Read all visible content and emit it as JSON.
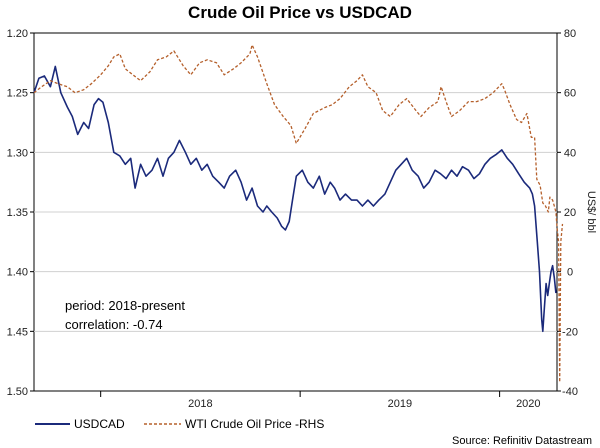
{
  "chart_data": {
    "type": "line",
    "title": "Crude Oil Price vs USDCAD",
    "ylabel": "",
    "ylabel_right": "US$/ bbl",
    "x_ticks": [
      "2018",
      "2019",
      "2020"
    ],
    "x_range": [
      "2017-09-01",
      "2020-04-15"
    ],
    "y_left": {
      "range": [
        1.5,
        1.2
      ],
      "inverted": true,
      "ticks": [
        "1.20",
        "1.25",
        "1.30",
        "1.35",
        "1.40",
        "1.45",
        "1.50"
      ]
    },
    "y_right": {
      "range": [
        -40,
        80
      ],
      "ticks": [
        "80",
        "60",
        "40",
        "20",
        "0",
        "-20",
        "-40"
      ]
    },
    "annotations": [
      "period: 2018-present",
      "correlation: -0.74"
    ],
    "source": "Source: Refinitiv Datastream",
    "series": [
      {
        "name": "USDCAD",
        "axis": "left",
        "color": "#1b2a7b",
        "style": "solid",
        "points": [
          [
            "2017-09-01",
            1.25
          ],
          [
            "2017-09-10",
            1.238
          ],
          [
            "2017-09-20",
            1.236
          ],
          [
            "2017-10-01",
            1.245
          ],
          [
            "2017-10-10",
            1.228
          ],
          [
            "2017-10-20",
            1.25
          ],
          [
            "2017-11-01",
            1.262
          ],
          [
            "2017-11-10",
            1.27
          ],
          [
            "2017-11-20",
            1.285
          ],
          [
            "2017-12-01",
            1.275
          ],
          [
            "2017-12-10",
            1.28
          ],
          [
            "2017-12-20",
            1.26
          ],
          [
            "2017-12-28",
            1.255
          ],
          [
            "2018-01-05",
            1.258
          ],
          [
            "2018-01-15",
            1.275
          ],
          [
            "2018-01-25",
            1.3
          ],
          [
            "2018-02-05",
            1.303
          ],
          [
            "2018-02-15",
            1.31
          ],
          [
            "2018-02-25",
            1.305
          ],
          [
            "2018-03-05",
            1.33
          ],
          [
            "2018-03-15",
            1.31
          ],
          [
            "2018-03-25",
            1.32
          ],
          [
            "2018-04-05",
            1.315
          ],
          [
            "2018-04-15",
            1.305
          ],
          [
            "2018-04-25",
            1.32
          ],
          [
            "2018-05-05",
            1.305
          ],
          [
            "2018-05-15",
            1.3
          ],
          [
            "2018-05-25",
            1.29
          ],
          [
            "2018-06-05",
            1.3
          ],
          [
            "2018-06-15",
            1.31
          ],
          [
            "2018-06-25",
            1.305
          ],
          [
            "2018-07-05",
            1.315
          ],
          [
            "2018-07-15",
            1.31
          ],
          [
            "2018-07-25",
            1.32
          ],
          [
            "2018-08-05",
            1.325
          ],
          [
            "2018-08-15",
            1.33
          ],
          [
            "2018-08-25",
            1.32
          ],
          [
            "2018-09-05",
            1.315
          ],
          [
            "2018-09-15",
            1.325
          ],
          [
            "2018-09-25",
            1.34
          ],
          [
            "2018-10-05",
            1.33
          ],
          [
            "2018-10-15",
            1.345
          ],
          [
            "2018-10-25",
            1.35
          ],
          [
            "2018-11-01",
            1.345
          ],
          [
            "2018-11-10",
            1.35
          ],
          [
            "2018-11-20",
            1.355
          ],
          [
            "2018-11-28",
            1.362
          ],
          [
            "2018-12-05",
            1.365
          ],
          [
            "2018-12-12",
            1.358
          ],
          [
            "2018-12-18",
            1.34
          ],
          [
            "2018-12-25",
            1.32
          ],
          [
            "2019-01-05",
            1.315
          ],
          [
            "2019-01-15",
            1.325
          ],
          [
            "2019-01-25",
            1.33
          ],
          [
            "2019-02-05",
            1.32
          ],
          [
            "2019-02-15",
            1.335
          ],
          [
            "2019-02-25",
            1.325
          ],
          [
            "2019-03-05",
            1.33
          ],
          [
            "2019-03-15",
            1.34
          ],
          [
            "2019-03-25",
            1.335
          ],
          [
            "2019-04-05",
            1.34
          ],
          [
            "2019-04-15",
            1.34
          ],
          [
            "2019-04-25",
            1.345
          ],
          [
            "2019-05-05",
            1.34
          ],
          [
            "2019-05-15",
            1.345
          ],
          [
            "2019-05-25",
            1.34
          ],
          [
            "2019-06-05",
            1.335
          ],
          [
            "2019-06-15",
            1.325
          ],
          [
            "2019-06-25",
            1.315
          ],
          [
            "2019-07-05",
            1.31
          ],
          [
            "2019-07-15",
            1.305
          ],
          [
            "2019-07-25",
            1.315
          ],
          [
            "2019-08-05",
            1.32
          ],
          [
            "2019-08-15",
            1.33
          ],
          [
            "2019-08-25",
            1.325
          ],
          [
            "2019-09-05",
            1.315
          ],
          [
            "2019-09-15",
            1.318
          ],
          [
            "2019-09-25",
            1.322
          ],
          [
            "2019-10-05",
            1.315
          ],
          [
            "2019-10-15",
            1.32
          ],
          [
            "2019-10-25",
            1.312
          ],
          [
            "2019-11-05",
            1.315
          ],
          [
            "2019-11-15",
            1.322
          ],
          [
            "2019-11-25",
            1.318
          ],
          [
            "2019-12-05",
            1.31
          ],
          [
            "2019-12-15",
            1.305
          ],
          [
            "2019-12-25",
            1.302
          ],
          [
            "2020-01-05",
            1.298
          ],
          [
            "2020-01-15",
            1.305
          ],
          [
            "2020-01-25",
            1.31
          ],
          [
            "2020-02-05",
            1.318
          ],
          [
            "2020-02-15",
            1.325
          ],
          [
            "2020-02-25",
            1.33
          ],
          [
            "2020-03-01",
            1.335
          ],
          [
            "2020-03-05",
            1.345
          ],
          [
            "2020-03-10",
            1.375
          ],
          [
            "2020-03-14",
            1.4
          ],
          [
            "2020-03-18",
            1.44
          ],
          [
            "2020-03-20",
            1.45
          ],
          [
            "2020-03-23",
            1.43
          ],
          [
            "2020-03-26",
            1.41
          ],
          [
            "2020-03-29",
            1.42
          ],
          [
            "2020-04-01",
            1.41
          ],
          [
            "2020-04-04",
            1.4
          ],
          [
            "2020-04-07",
            1.395
          ],
          [
            "2020-04-10",
            1.405
          ],
          [
            "2020-04-13",
            1.418
          ]
        ]
      },
      {
        "name": "WTI Crude Oil Price -RHS",
        "axis": "right",
        "color": "#b5602c",
        "style": "dashed",
        "points": [
          [
            "2017-09-01",
            60
          ],
          [
            "2017-09-15",
            62
          ],
          [
            "2017-10-01",
            64
          ],
          [
            "2017-10-15",
            63
          ],
          [
            "2017-11-01",
            62
          ],
          [
            "2017-11-15",
            60
          ],
          [
            "2017-12-01",
            61
          ],
          [
            "2017-12-15",
            63
          ],
          [
            "2018-01-01",
            66
          ],
          [
            "2018-01-15",
            69
          ],
          [
            "2018-01-25",
            72
          ],
          [
            "2018-02-05",
            73
          ],
          [
            "2018-02-15",
            68
          ],
          [
            "2018-03-01",
            66
          ],
          [
            "2018-03-15",
            64
          ],
          [
            "2018-04-01",
            67
          ],
          [
            "2018-04-15",
            71
          ],
          [
            "2018-05-01",
            72
          ],
          [
            "2018-05-15",
            74
          ],
          [
            "2018-06-01",
            69
          ],
          [
            "2018-06-15",
            66
          ],
          [
            "2018-07-01",
            70
          ],
          [
            "2018-07-15",
            71
          ],
          [
            "2018-08-01",
            70
          ],
          [
            "2018-08-15",
            66
          ],
          [
            "2018-09-01",
            68
          ],
          [
            "2018-09-15",
            70
          ],
          [
            "2018-10-01",
            73
          ],
          [
            "2018-10-05",
            76
          ],
          [
            "2018-10-15",
            72
          ],
          [
            "2018-11-01",
            63
          ],
          [
            "2018-11-15",
            56
          ],
          [
            "2018-12-01",
            52
          ],
          [
            "2018-12-15",
            49
          ],
          [
            "2018-12-25",
            43
          ],
          [
            "2019-01-10",
            48
          ],
          [
            "2019-01-25",
            53
          ],
          [
            "2019-02-15",
            55
          ],
          [
            "2019-03-01",
            56
          ],
          [
            "2019-03-15",
            58
          ],
          [
            "2019-04-01",
            62
          ],
          [
            "2019-04-15",
            64
          ],
          [
            "2019-04-25",
            66
          ],
          [
            "2019-05-05",
            62
          ],
          [
            "2019-05-20",
            60
          ],
          [
            "2019-06-01",
            54
          ],
          [
            "2019-06-15",
            52
          ],
          [
            "2019-07-01",
            56
          ],
          [
            "2019-07-15",
            58
          ],
          [
            "2019-08-01",
            54
          ],
          [
            "2019-08-10",
            52
          ],
          [
            "2019-08-25",
            55
          ],
          [
            "2019-09-10",
            57
          ],
          [
            "2019-09-16",
            62
          ],
          [
            "2019-09-25",
            57
          ],
          [
            "2019-10-05",
            52
          ],
          [
            "2019-10-20",
            54
          ],
          [
            "2019-11-05",
            57
          ],
          [
            "2019-11-20",
            57
          ],
          [
            "2019-12-05",
            58
          ],
          [
            "2019-12-20",
            60
          ],
          [
            "2020-01-05",
            63
          ],
          [
            "2020-01-10",
            61
          ],
          [
            "2020-01-20",
            56
          ],
          [
            "2020-02-01",
            51
          ],
          [
            "2020-02-10",
            50
          ],
          [
            "2020-02-20",
            53
          ],
          [
            "2020-02-28",
            45
          ],
          [
            "2020-03-05",
            45
          ],
          [
            "2020-03-09",
            31
          ],
          [
            "2020-03-15",
            29
          ],
          [
            "2020-03-20",
            23
          ],
          [
            "2020-03-25",
            22
          ],
          [
            "2020-03-30",
            20
          ],
          [
            "2020-04-02",
            25
          ],
          [
            "2020-04-07",
            24
          ],
          [
            "2020-04-10",
            22
          ],
          [
            "2020-04-13",
            20
          ],
          [
            "2020-04-15",
            15
          ],
          [
            "2020-04-18",
            10
          ],
          [
            "2020-04-20",
            -37
          ],
          [
            "2020-04-22",
            10
          ],
          [
            "2020-04-25",
            16
          ]
        ]
      }
    ]
  }
}
